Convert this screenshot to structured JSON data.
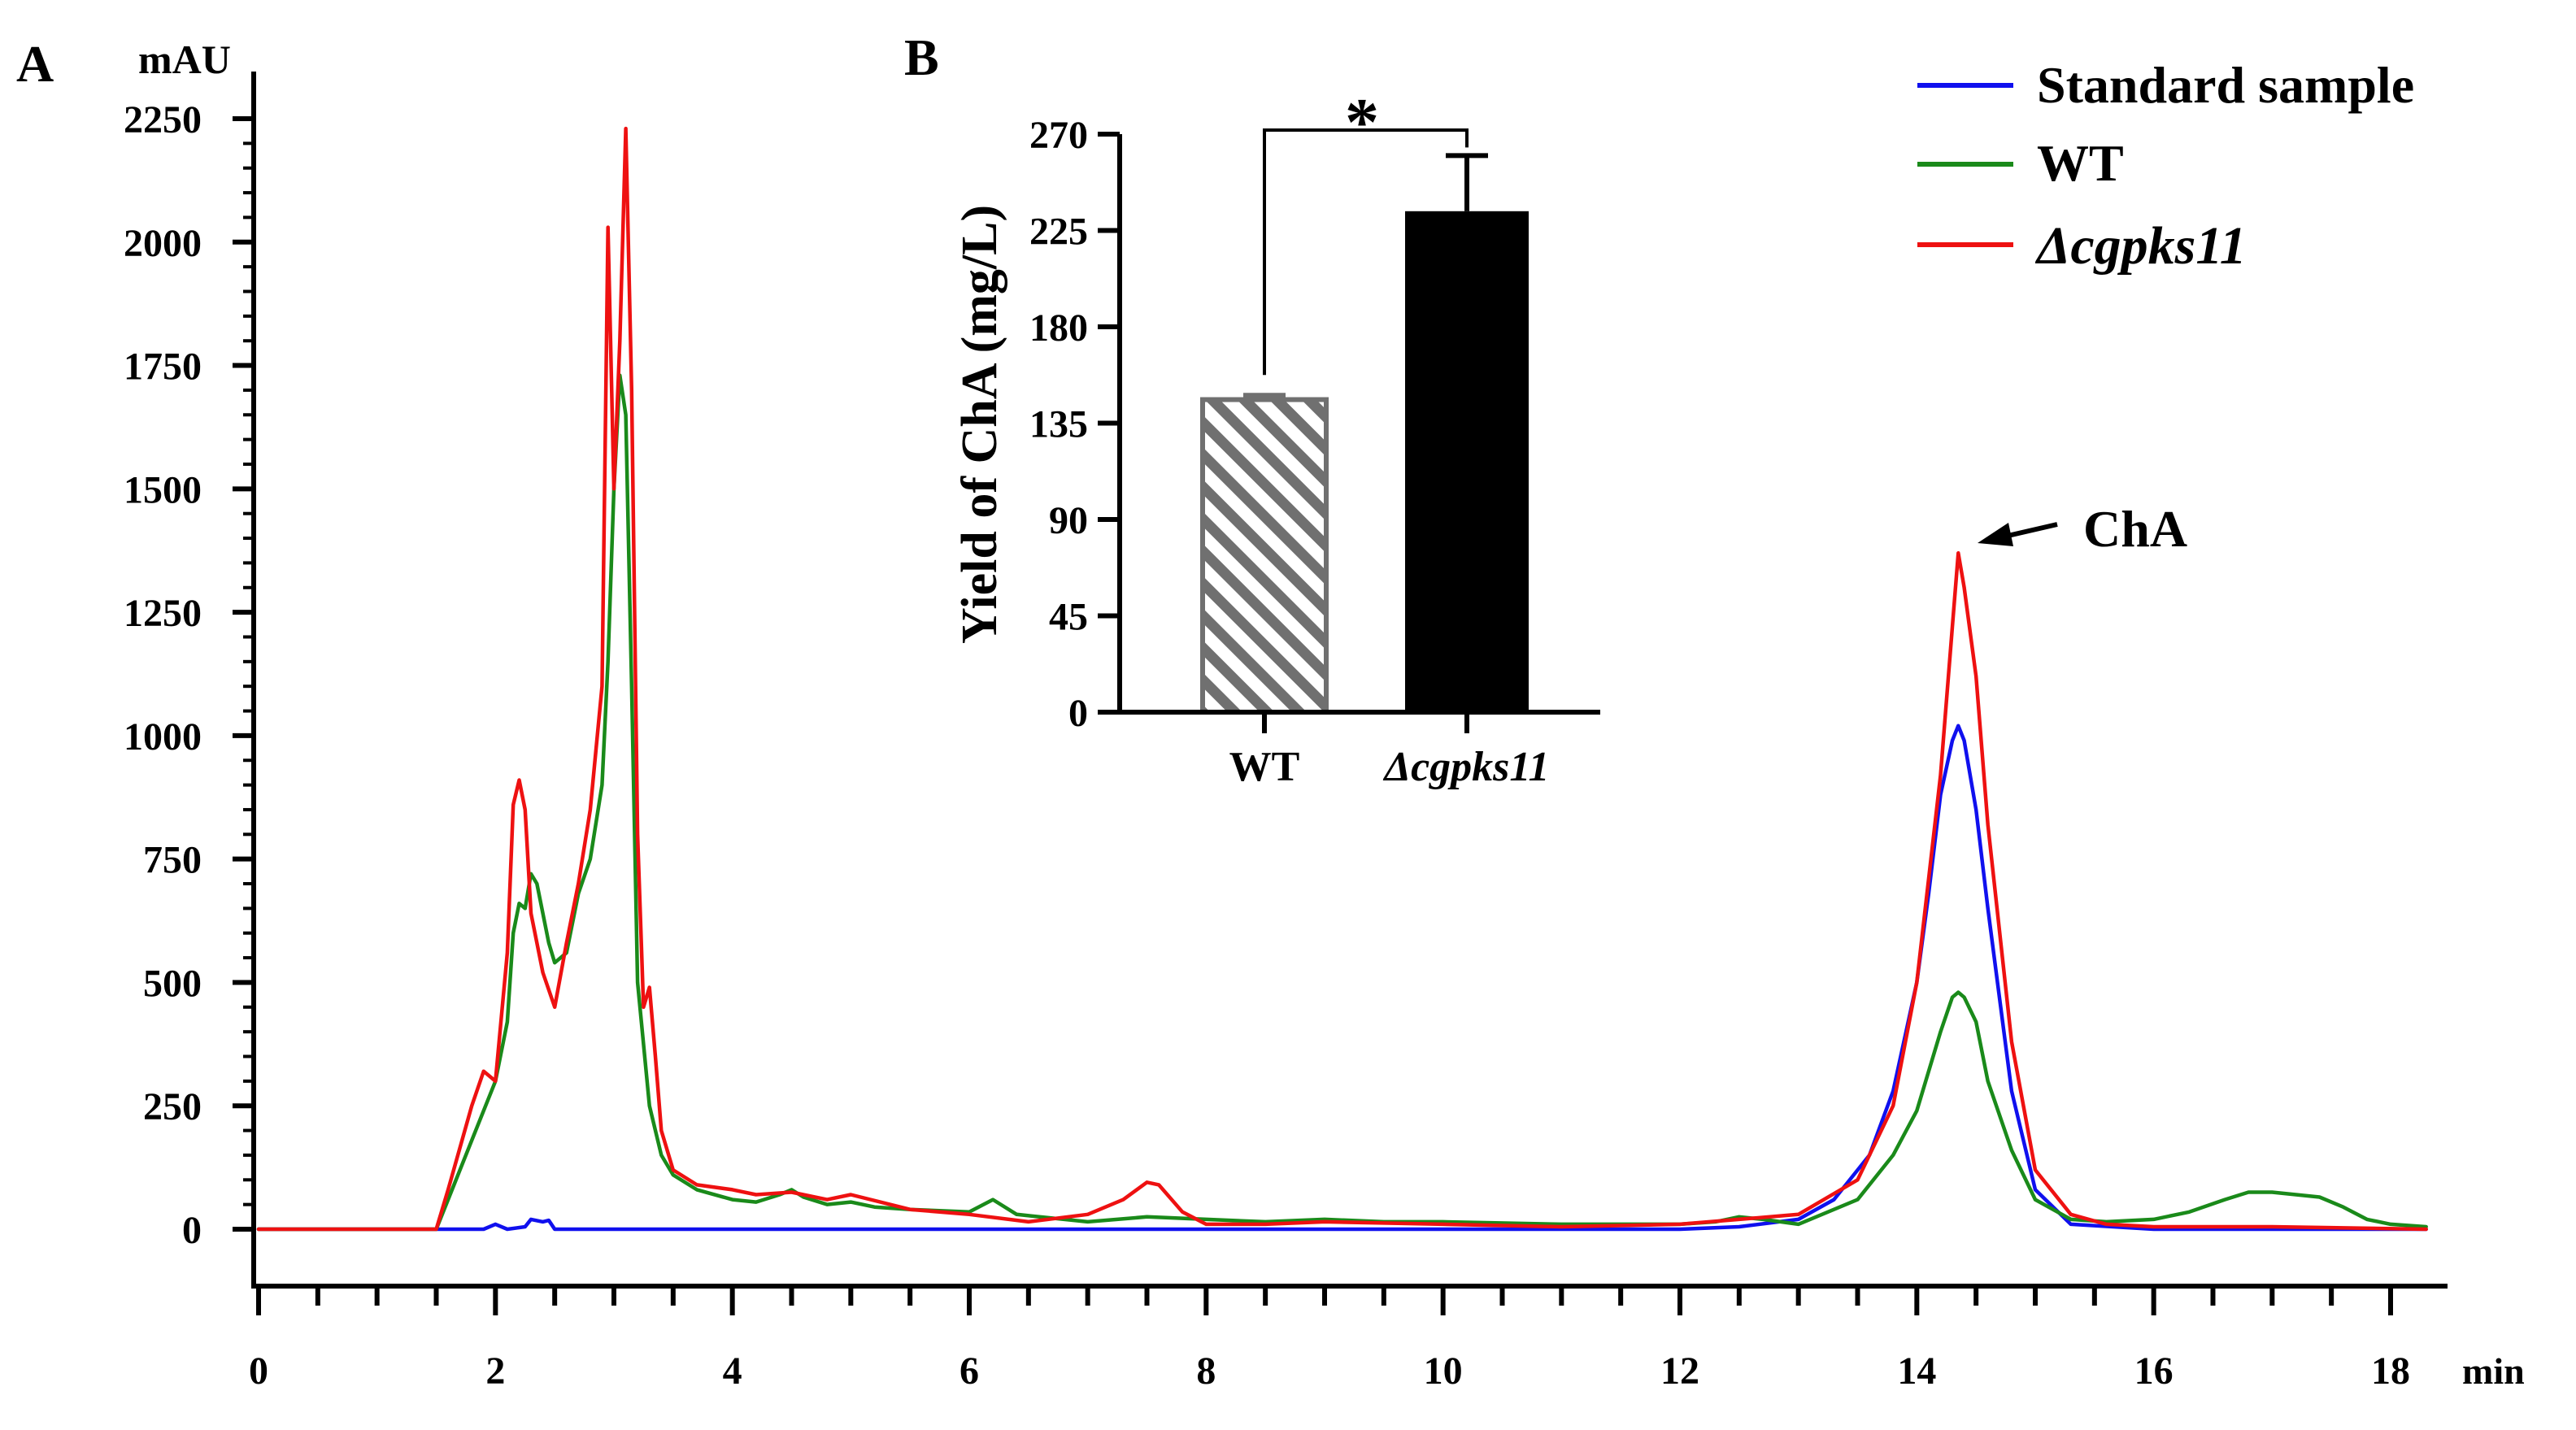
{
  "chart_data": [
    {
      "id": "A",
      "panel_label": "A",
      "type": "line",
      "title": "",
      "ylabel": "mAU",
      "xlabel": "min",
      "xlim": [
        0,
        18.3
      ],
      "ylim": [
        -120,
        2270
      ],
      "x_ticks": [
        0,
        2,
        4,
        6,
        8,
        10,
        12,
        14,
        16,
        18
      ],
      "x_tick_labels": [
        "0",
        "2",
        "4",
        "6",
        "8",
        "10",
        "12",
        "14",
        "16",
        "18"
      ],
      "y_ticks": [
        0,
        250,
        500,
        750,
        1000,
        1250,
        1500,
        1750,
        2000,
        2250
      ],
      "y_tick_labels": [
        "0",
        "250",
        "500",
        "750",
        "1000",
        "1250",
        "1500",
        "1750",
        "2000",
        "2250"
      ],
      "grid": false,
      "legend_position": "top-right",
      "legend": [
        {
          "label": "Standard sample",
          "color": "#1010ee"
        },
        {
          "label": "WT",
          "color": "#1a8a1a"
        },
        {
          "label": "Δcgpks11",
          "color": "#ee1111"
        }
      ],
      "annotation": {
        "text": "ChA",
        "x": 14.35,
        "y": 1370
      },
      "series": [
        {
          "name": "Standard sample",
          "color": "#1010ee",
          "x": [
            0,
            1.5,
            1.9,
            2.0,
            2.1,
            2.25,
            2.3,
            2.4,
            2.45,
            2.5,
            2.6,
            4,
            6,
            8,
            10,
            12,
            12.5,
            13.0,
            13.3,
            13.6,
            13.8,
            14.0,
            14.1,
            14.2,
            14.3,
            14.35,
            14.4,
            14.5,
            14.6,
            14.8,
            15.0,
            15.3,
            16,
            18.3
          ],
          "y": [
            0,
            0,
            0,
            10,
            0,
            5,
            20,
            15,
            18,
            0,
            0,
            0,
            0,
            0,
            0,
            0,
            5,
            20,
            60,
            150,
            280,
            500,
            680,
            880,
            990,
            1020,
            990,
            850,
            650,
            280,
            80,
            10,
            0,
            0
          ]
        },
        {
          "name": "WT",
          "color": "#1a8a1a",
          "x": [
            0,
            1.5,
            1.6,
            1.8,
            2.0,
            2.1,
            2.15,
            2.2,
            2.25,
            2.3,
            2.35,
            2.45,
            2.5,
            2.6,
            2.7,
            2.8,
            2.9,
            2.95,
            3.0,
            3.05,
            3.1,
            3.15,
            3.2,
            3.3,
            3.4,
            3.5,
            3.7,
            4.0,
            4.2,
            4.4,
            4.5,
            4.6,
            4.8,
            5.0,
            5.2,
            5.5,
            6.0,
            6.2,
            6.4,
            7.0,
            7.5,
            8.0,
            8.5,
            9.0,
            9.5,
            10.0,
            11.0,
            12.0,
            12.3,
            12.5,
            12.7,
            13.0,
            13.5,
            13.8,
            14.0,
            14.2,
            14.3,
            14.35,
            14.4,
            14.5,
            14.6,
            14.8,
            15.0,
            15.3,
            15.6,
            16.0,
            16.3,
            16.6,
            16.8,
            17.0,
            17.2,
            17.4,
            17.6,
            17.8,
            18.0,
            18.3
          ],
          "y": [
            0,
            0,
            60,
            180,
            300,
            420,
            600,
            660,
            650,
            720,
            700,
            580,
            540,
            560,
            680,
            750,
            900,
            1150,
            1500,
            1730,
            1650,
            1100,
            500,
            250,
            150,
            110,
            80,
            60,
            55,
            70,
            80,
            65,
            50,
            55,
            45,
            40,
            35,
            60,
            30,
            15,
            25,
            20,
            15,
            20,
            15,
            15,
            10,
            10,
            15,
            25,
            20,
            10,
            60,
            150,
            240,
            400,
            470,
            480,
            470,
            420,
            300,
            160,
            60,
            20,
            15,
            20,
            35,
            60,
            75,
            75,
            70,
            65,
            45,
            20,
            10,
            5
          ]
        },
        {
          "name": "Δcgpks11",
          "color": "#ee1111",
          "x": [
            0,
            1.5,
            1.6,
            1.8,
            1.9,
            2.0,
            2.1,
            2.15,
            2.2,
            2.25,
            2.3,
            2.4,
            2.5,
            2.6,
            2.7,
            2.8,
            2.9,
            2.95,
            3.0,
            3.05,
            3.1,
            3.15,
            3.2,
            3.25,
            3.3,
            3.35,
            3.4,
            3.5,
            3.7,
            4.0,
            4.2,
            4.5,
            4.8,
            5.0,
            5.5,
            6.0,
            6.5,
            7.0,
            7.3,
            7.5,
            7.6,
            7.8,
            8.0,
            8.5,
            9.0,
            10.0,
            11.0,
            12.0,
            12.5,
            13.0,
            13.5,
            13.8,
            14.0,
            14.2,
            14.3,
            14.35,
            14.4,
            14.5,
            14.6,
            14.8,
            15.0,
            15.3,
            15.6,
            16.0,
            17.0,
            18.3
          ],
          "y": [
            0,
            0,
            80,
            250,
            320,
            300,
            560,
            860,
            910,
            850,
            640,
            520,
            450,
            580,
            700,
            850,
            1100,
            2030,
            1500,
            1800,
            2230,
            1700,
            800,
            450,
            490,
            350,
            200,
            120,
            90,
            80,
            70,
            75,
            60,
            70,
            40,
            30,
            15,
            30,
            60,
            95,
            90,
            35,
            10,
            10,
            15,
            10,
            5,
            10,
            20,
            30,
            100,
            250,
            500,
            920,
            1220,
            1370,
            1300,
            1120,
            820,
            380,
            120,
            30,
            10,
            5,
            5,
            0
          ]
        }
      ]
    },
    {
      "id": "B",
      "panel_label": "B",
      "type": "bar",
      "title": "",
      "ylabel": "Yield of ChA  (mg/L)",
      "xlabel": "",
      "ylim": [
        0,
        270
      ],
      "y_ticks": [
        0,
        45,
        90,
        135,
        180,
        225,
        270
      ],
      "y_tick_labels": [
        "0",
        "45",
        "90",
        "135",
        "180",
        "225",
        "270"
      ],
      "grid": false,
      "categories": [
        "WT",
        "Δcgpks11"
      ],
      "values": [
        146,
        234
      ],
      "errors": [
        2,
        26
      ],
      "bar_styles": [
        "hatched-gray",
        "solid-black"
      ],
      "significance": {
        "text": "*",
        "between": [
          "WT",
          "Δcgpks11"
        ]
      }
    }
  ]
}
